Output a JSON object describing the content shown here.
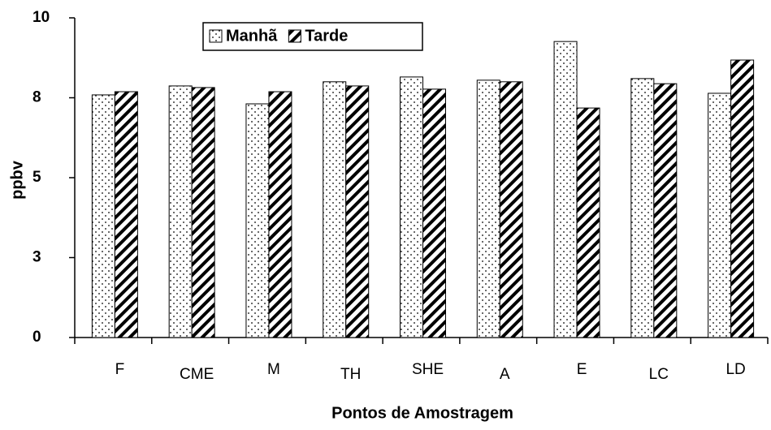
{
  "chart_data": {
    "type": "bar",
    "x_label": "Pontos de Amostragem",
    "y_label": "ppbv",
    "categories": [
      "F",
      "CME",
      "M",
      "TH",
      "SHE",
      "A",
      "E",
      "LC",
      "LD"
    ],
    "series": [
      {
        "name": "Manhã",
        "color": "#000000",
        "pattern": "dots",
        "values": [
          7.59,
          7.87,
          7.31,
          8.0,
          8.15,
          8.05,
          9.26,
          8.1,
          7.64
        ]
      },
      {
        "name": "Tarde",
        "color": "#000000",
        "pattern": "hatch",
        "values": [
          7.69,
          7.82,
          7.69,
          7.87,
          7.77,
          8.0,
          7.18,
          7.94,
          8.68
        ]
      }
    ],
    "ylim": [
      0,
      10
    ],
    "yticks": [
      0,
      {
        "value": 2.5,
        "label": "3"
      },
      5,
      {
        "value": 7.5,
        "label": "8"
      },
      10
    ],
    "grid": false,
    "legend": "top"
  }
}
